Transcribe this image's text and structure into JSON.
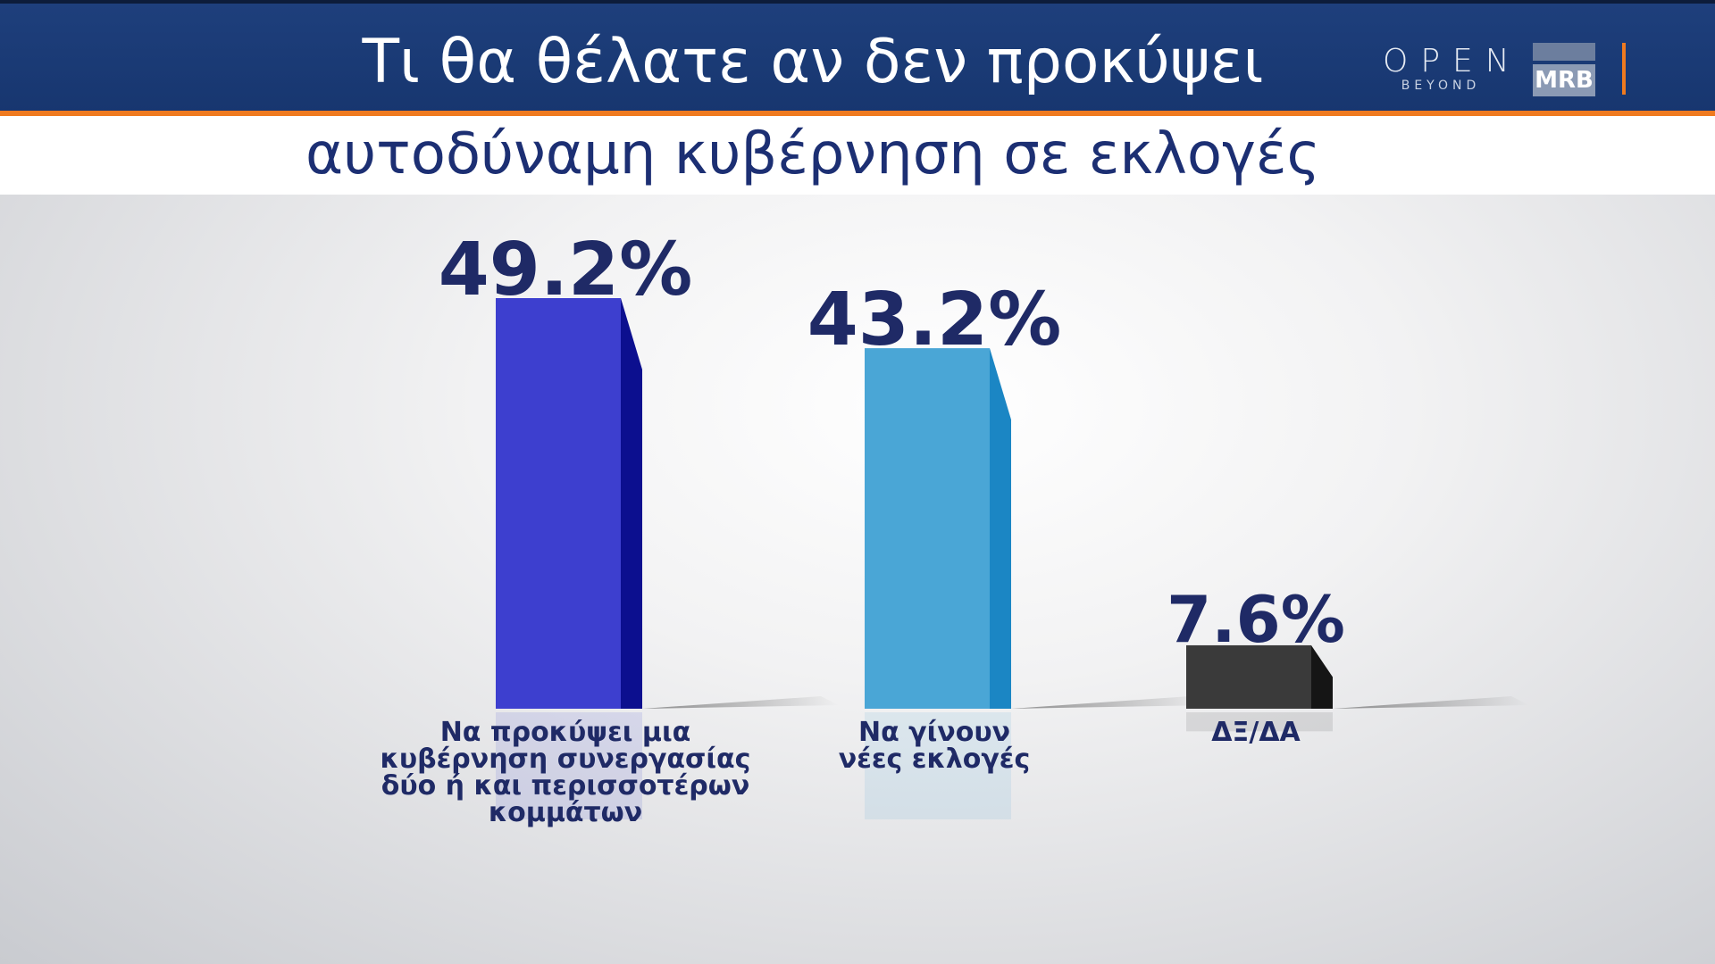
{
  "header": {
    "title": "Τι θα θέλατε αν δεν προκύψει",
    "subtitle": "αυτοδύναμη κυβέρνηση σε εκλογές"
  },
  "logos": {
    "open_text": "OPEN",
    "open_sub": "BEYOND",
    "mrb_text": "MRB"
  },
  "chart_data": {
    "type": "bar",
    "categories": [
      [
        "Να προκύψει μια",
        "κυβέρνηση συνεργασίας",
        "δύο ή και περισσοτέρων",
        "κομμάτων"
      ],
      [
        "Να γίνουν",
        "νέες εκλογές"
      ],
      [
        "ΔΞ/ΔΑ"
      ]
    ],
    "values": [
      49.2,
      43.2,
      7.6
    ],
    "value_labels": [
      "49.2%",
      "43.2%",
      "7.6%"
    ],
    "colors": {
      "front": [
        "#3d3fcf",
        "#4aa6d6",
        "#3a3a3a"
      ],
      "side": [
        "#0c0f8f",
        "#1b86c4",
        "#151515"
      ]
    },
    "ylim": [
      0,
      49.2
    ],
    "grid": false
  }
}
